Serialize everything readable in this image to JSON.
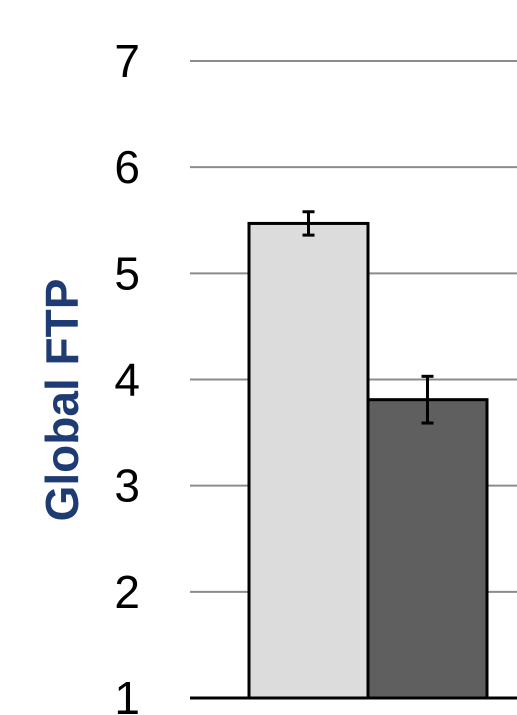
{
  "chart_data": {
    "type": "bar",
    "title": "",
    "xlabel": "",
    "ylabel": "Global FTP",
    "ylim": [
      1,
      7
    ],
    "yticks": [
      1,
      2,
      3,
      4,
      5,
      6,
      7
    ],
    "grid": true,
    "categories": [
      "",
      ""
    ],
    "values": [
      5.47,
      3.81
    ],
    "errors": [
      0.11,
      0.22
    ],
    "bar_colors": [
      "#dcdcdc",
      "#5f5f5f"
    ],
    "ylabel_color": "#1f3b73",
    "grid_color": "#8c8c8c"
  }
}
